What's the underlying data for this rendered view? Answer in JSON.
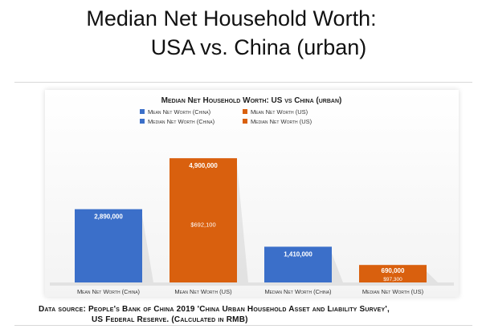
{
  "slide": {
    "title_line1": "Median Net Household Worth:",
    "title_line2": "USA vs. China (urban)",
    "source_line1": "Data source: People's Bank of China 2019 'China Urban Household Asset and Liability Survey',",
    "source_line2": "US Federal Reserve. (Calculated in RMB)"
  },
  "chart_data": {
    "type": "bar",
    "title": "Median Net Household Worth: US vs China (urban)",
    "categories": [
      "Mean Net Worth (China)",
      "Mean Net Worth (US)",
      "Median Net Worth (China)",
      "Median Net Worth (US)"
    ],
    "legend": [
      {
        "label": "Mean Net Worth (China)",
        "color": "#3b6fc9"
      },
      {
        "label": "Mean Net Worth (US)",
        "color": "#d9600e"
      },
      {
        "label": "Median Net Worth (China)",
        "color": "#3b6fc9"
      },
      {
        "label": "Median Net Worth (US)",
        "color": "#d9600e"
      }
    ],
    "values": [
      2890000,
      4900000,
      1410000,
      690000
    ],
    "value_labels": [
      "2,890,000",
      "4,900,000",
      "1,410,000",
      "690,000"
    ],
    "inner_labels": [
      "",
      "$692,100",
      "",
      "$97,300"
    ],
    "colors": [
      "#3b6fc9",
      "#d9600e",
      "#3b6fc9",
      "#d9600e"
    ],
    "ylim": [
      0,
      5000000
    ],
    "grid": false,
    "legend_position": "top-center"
  },
  "colors": {
    "china_blue": "#3b6fc9",
    "us_orange": "#d9600e"
  }
}
